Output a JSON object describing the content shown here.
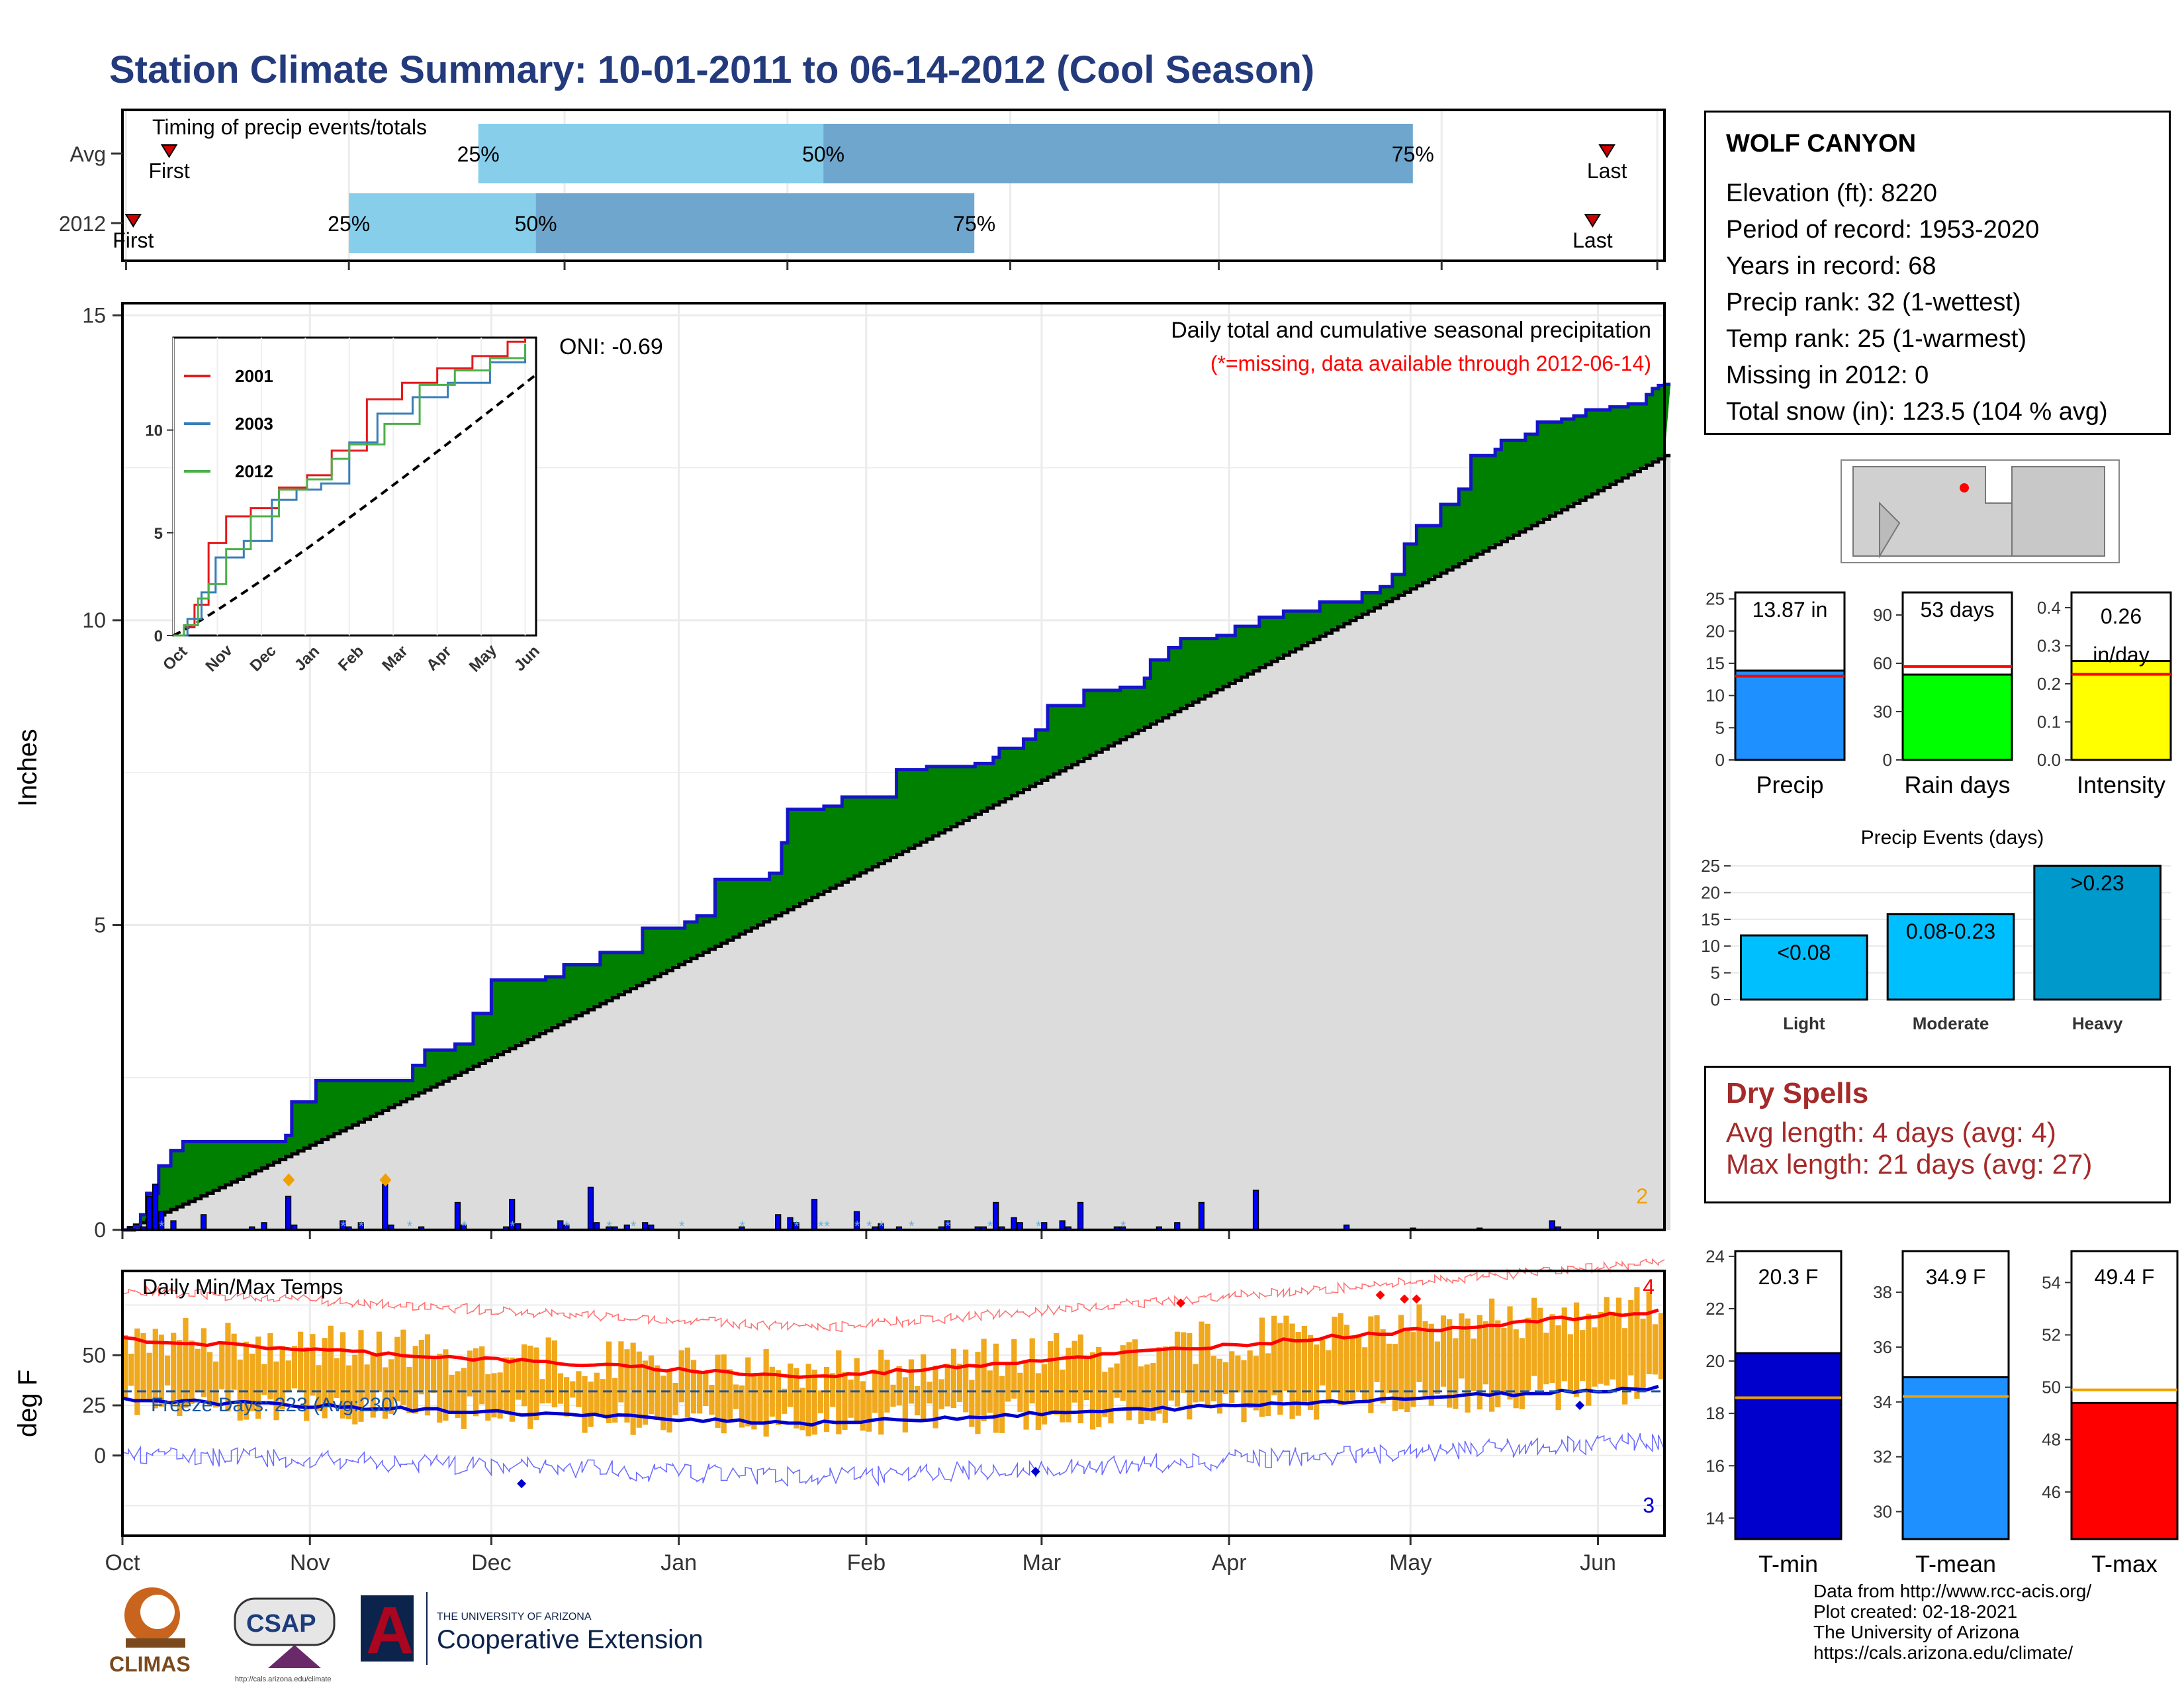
{
  "page": {
    "title": "Station Climate Summary: 10-01-2011 to 06-14-2012 (Cool Season)"
  },
  "station": {
    "name": "WOLF CANYON",
    "lines": [
      "Elevation (ft): 8220",
      "Period of record: 1953-2020",
      "Years in record: 68",
      "Precip rank: 32 (1-wettest)",
      "Temp rank: 25 (1-warmest)",
      "Missing in 2012: 0",
      "Total snow (in): 123.5 (104 % avg)"
    ]
  },
  "dry_spells": {
    "title": "Dry Spells",
    "avg_line": "Avg length: 4 days (avg: 4)",
    "max_line": "Max length: 21 days (avg: 27)"
  },
  "credits": [
    "Data from http://www.rcc-acis.org/",
    "Plot created: 02-18-2021",
    "The University of Arizona",
    "https://cals.arizona.edu/climate/"
  ],
  "logos": {
    "climas": "CLIMAS",
    "csap": "CSAP",
    "csap_url": "http://cals.arizona.edu/climate",
    "ua_a": "A",
    "ua_small": "THE UNIVERSITY OF ARIZONA",
    "ua_ext": "Cooperative Extension"
  },
  "colors": {
    "title": "#233a7c",
    "timing_light": "#87ceeb",
    "timing_dark": "#6ea6cd",
    "excess_fill": "#008000",
    "cum_line": "#1515c8",
    "normal_fill": "#dcdcdc",
    "bar_blue": "#0000ff",
    "temp_bar": "#f0a81c",
    "tmax": "#ff0000",
    "tmin": "#0000cd",
    "precip_bar": "#1e90ff",
    "raindays_bar": "#00ff00",
    "intensity_bar": "#ffff00",
    "events_bar": "#00bfff",
    "events_heavy": "#0099cc",
    "dry_text": "#a52a2a",
    "inset_2001": "#e41a1c",
    "inset_2003": "#377eb8",
    "inset_2012": "#4daf4a"
  },
  "chart_data": [
    {
      "type": "bar",
      "name": "timing",
      "title": "Timing of precip events/totals",
      "rows": [
        {
          "label": "Avg",
          "first_doy": 6,
          "p25_doy": 49,
          "p50_doy": 97,
          "p75_doy": 179,
          "last_doy": 206,
          "first_label": "First",
          "last_label": "Last",
          "p25_label": "25%",
          "p50_label": "50%",
          "p75_label": "75%"
        },
        {
          "label": "2012",
          "first_doy": 1,
          "p25_doy": 31,
          "p50_doy": 57,
          "p75_doy": 118,
          "last_doy": 204,
          "first_label": "First",
          "last_label": "Last",
          "p25_label": "25%",
          "p50_label": "50%",
          "p75_label": "75%"
        }
      ],
      "xlim": [
        -0.5,
        214
      ]
    },
    {
      "type": "area",
      "name": "cumulative_precip",
      "title": "Daily total and cumulative seasonal precipitation",
      "subtitle": "(*=missing, data available through 2012-06-14)",
      "ylabel": "Inches",
      "ylim": [
        0,
        15.2
      ],
      "yticks": [
        0,
        5,
        10,
        15
      ],
      "oni_label": "ONI: -0.69",
      "corner_count": "2",
      "cumulative_steps": [
        [
          0,
          0
        ],
        [
          2,
          0.05
        ],
        [
          3,
          0.25
        ],
        [
          4,
          0.6
        ],
        [
          6,
          1.05
        ],
        [
          8,
          1.3
        ],
        [
          10,
          1.45
        ],
        [
          27,
          1.55
        ],
        [
          28,
          2.1
        ],
        [
          32,
          2.45
        ],
        [
          48,
          2.7
        ],
        [
          50,
          2.95
        ],
        [
          55,
          3.05
        ],
        [
          58,
          3.55
        ],
        [
          61,
          4.1
        ],
        [
          70,
          4.15
        ],
        [
          73,
          4.35
        ],
        [
          79,
          4.55
        ],
        [
          86,
          4.95
        ],
        [
          93,
          5.05
        ],
        [
          95,
          5.15
        ],
        [
          98,
          5.75
        ],
        [
          107,
          5.85
        ],
        [
          109,
          6.35
        ],
        [
          110,
          6.9
        ],
        [
          116,
          6.95
        ],
        [
          119,
          7.1
        ],
        [
          128,
          7.55
        ],
        [
          133,
          7.6
        ],
        [
          141,
          7.65
        ],
        [
          144,
          7.75
        ],
        [
          145,
          7.9
        ],
        [
          149,
          8.05
        ],
        [
          151,
          8.2
        ],
        [
          153,
          8.6
        ],
        [
          159,
          8.85
        ],
        [
          165,
          8.9
        ],
        [
          169,
          9.05
        ],
        [
          170,
          9.35
        ],
        [
          173,
          9.55
        ],
        [
          175,
          9.7
        ],
        [
          181,
          9.75
        ],
        [
          184,
          9.9
        ],
        [
          188,
          10.05
        ],
        [
          192,
          10.15
        ],
        [
          198,
          10.3
        ],
        [
          205,
          10.45
        ],
        [
          208,
          10.55
        ],
        [
          210,
          10.75
        ],
        [
          212,
          11.25
        ],
        [
          214,
          11.55
        ],
        [
          218,
          11.9
        ],
        [
          221,
          12.15
        ],
        [
          223,
          12.7
        ],
        [
          227,
          12.8
        ],
        [
          228,
          12.95
        ],
        [
          232,
          13.05
        ],
        [
          234,
          13.25
        ],
        [
          238,
          13.3
        ],
        [
          240,
          13.35
        ],
        [
          242,
          13.45
        ],
        [
          246,
          13.5
        ],
        [
          249,
          13.55
        ],
        [
          252,
          13.7
        ],
        [
          253,
          13.8
        ],
        [
          254,
          13.85
        ],
        [
          255,
          13.87
        ]
      ],
      "season_days": 255,
      "normal_end": 12.7,
      "daily_bars": [
        [
          3,
          0.05
        ],
        [
          4,
          0.55
        ],
        [
          5,
          0.75
        ],
        [
          6,
          0.3
        ],
        [
          8,
          0.15
        ],
        [
          13,
          0.25
        ],
        [
          21,
          0.05
        ],
        [
          23,
          0.12
        ],
        [
          27,
          0.55
        ],
        [
          28,
          0.08
        ],
        [
          36,
          0.15
        ],
        [
          37,
          0.05
        ],
        [
          39,
          0.12
        ],
        [
          43,
          0.75
        ],
        [
          44,
          0.08
        ],
        [
          49,
          0.05
        ],
        [
          55,
          0.45
        ],
        [
          56,
          0.08
        ],
        [
          63,
          0.05
        ],
        [
          64,
          0.5
        ],
        [
          65,
          0.1
        ],
        [
          72,
          0.15
        ],
        [
          73,
          0.08
        ],
        [
          77,
          0.7
        ],
        [
          78,
          0.12
        ],
        [
          80,
          0.05
        ],
        [
          81,
          0.05
        ],
        [
          83,
          0.08
        ],
        [
          86,
          0.12
        ],
        [
          87,
          0.08
        ],
        [
          102,
          0.05
        ],
        [
          108,
          0.25
        ],
        [
          110,
          0.2
        ],
        [
          111,
          0.12
        ],
        [
          114,
          0.5
        ],
        [
          121,
          0.3
        ],
        [
          124,
          0.05
        ],
        [
          125,
          0.1
        ],
        [
          128,
          0.05
        ],
        [
          135,
          0.05
        ],
        [
          136,
          0.15
        ],
        [
          141,
          0.05
        ],
        [
          142,
          0.05
        ],
        [
          144,
          0.45
        ],
        [
          145,
          0.05
        ],
        [
          147,
          0.2
        ],
        [
          148,
          0.12
        ],
        [
          152,
          0.12
        ],
        [
          155,
          0.15
        ],
        [
          156,
          0.05
        ],
        [
          158,
          0.45
        ],
        [
          164,
          0.05
        ],
        [
          165,
          0.05
        ],
        [
          171,
          0.05
        ],
        [
          174,
          0.12
        ],
        [
          178,
          0.45
        ],
        [
          187,
          0.65
        ],
        [
          202,
          0.08
        ],
        [
          213,
          0.03
        ],
        [
          224,
          0.03
        ],
        [
          236,
          0.15
        ],
        [
          237,
          0.05
        ]
      ],
      "snow_markers": [
        27,
        43
      ],
      "inset": {
        "series": [
          {
            "name": "2001",
            "color": "#e41a1c"
          },
          {
            "name": "2003",
            "color": "#377eb8"
          },
          {
            "name": "2012",
            "color": "#4daf4a"
          }
        ],
        "xticks": [
          "Oct",
          "Nov",
          "Dec",
          "Jan",
          "Feb",
          "Mar",
          "Apr",
          "May",
          "Jun"
        ],
        "yticks": [
          0,
          5,
          10
        ],
        "ylim": [
          0,
          14.5
        ]
      }
    },
    {
      "type": "line",
      "name": "daily_temps",
      "title": "Daily Min/Max Temps",
      "ylabel": "deg F",
      "ylim": [
        -40,
        92
      ],
      "yticks": [
        0,
        25,
        50
      ],
      "freeze_label": "Freeze Days: 223 (Avg:230)",
      "freeze_line": 32,
      "record_high_count": "4",
      "record_low_count": "3",
      "xticks": [
        "Oct",
        "Nov",
        "Dec",
        "Jan",
        "Feb",
        "Mar",
        "Apr",
        "May",
        "Jun"
      ],
      "normal_tmax_start": 58,
      "normal_tmax_mid": 39,
      "normal_tmax_end": 72,
      "normal_tmin_start": 28,
      "normal_tmin_mid": 16,
      "normal_tmin_end": 34
    },
    {
      "type": "bar",
      "name": "precip_total",
      "label": "13.87 in",
      "xlabel": "Precip",
      "value": 13.87,
      "avg": 13.0,
      "ylim": [
        0,
        26
      ],
      "yticks": [
        0,
        5,
        10,
        15,
        20,
        25
      ]
    },
    {
      "type": "bar",
      "name": "rain_days",
      "label": "53 days",
      "xlabel": "Rain days",
      "value": 53,
      "avg": 58,
      "ylim": [
        0,
        104
      ],
      "yticks": [
        0,
        30,
        60,
        90
      ]
    },
    {
      "type": "bar",
      "name": "intensity",
      "label": "0.26",
      "label2": "in/day",
      "xlabel": "Intensity",
      "value": 0.26,
      "avg": 0.225,
      "ylim": [
        0,
        0.44
      ],
      "yticks": [
        "0.0",
        "0.1",
        "0.2",
        "0.3",
        "0.4"
      ]
    },
    {
      "type": "bar",
      "name": "precip_events",
      "title": "Precip Events (days)",
      "categories": [
        "Light",
        "Moderate",
        "Heavy"
      ],
      "values": [
        12,
        16,
        25
      ],
      "labels": [
        "<0.08",
        "0.08-0.23",
        ">0.23"
      ],
      "ylim": [
        0,
        26
      ],
      "yticks": [
        0,
        5,
        10,
        15,
        20,
        25
      ]
    },
    {
      "type": "bar",
      "name": "tmin",
      "label": "20.3 F",
      "xlabel": "T-min",
      "value": 20.3,
      "avg": 18.6,
      "ylim": [
        13.2,
        24.2
      ],
      "yticks": [
        14,
        16,
        18,
        20,
        22,
        24
      ]
    },
    {
      "type": "bar",
      "name": "tmean",
      "label": "34.9 F",
      "xlabel": "T-mean",
      "value": 34.9,
      "avg": 34.2,
      "ylim": [
        29,
        39.5
      ],
      "yticks": [
        30,
        32,
        34,
        36,
        38
      ]
    },
    {
      "type": "bar",
      "name": "tmax",
      "label": "49.4 F",
      "xlabel": "T-max",
      "value": 49.4,
      "avg": 49.9,
      "ylim": [
        44.2,
        55.2
      ],
      "yticks": [
        46,
        48,
        50,
        52,
        54
      ]
    }
  ]
}
